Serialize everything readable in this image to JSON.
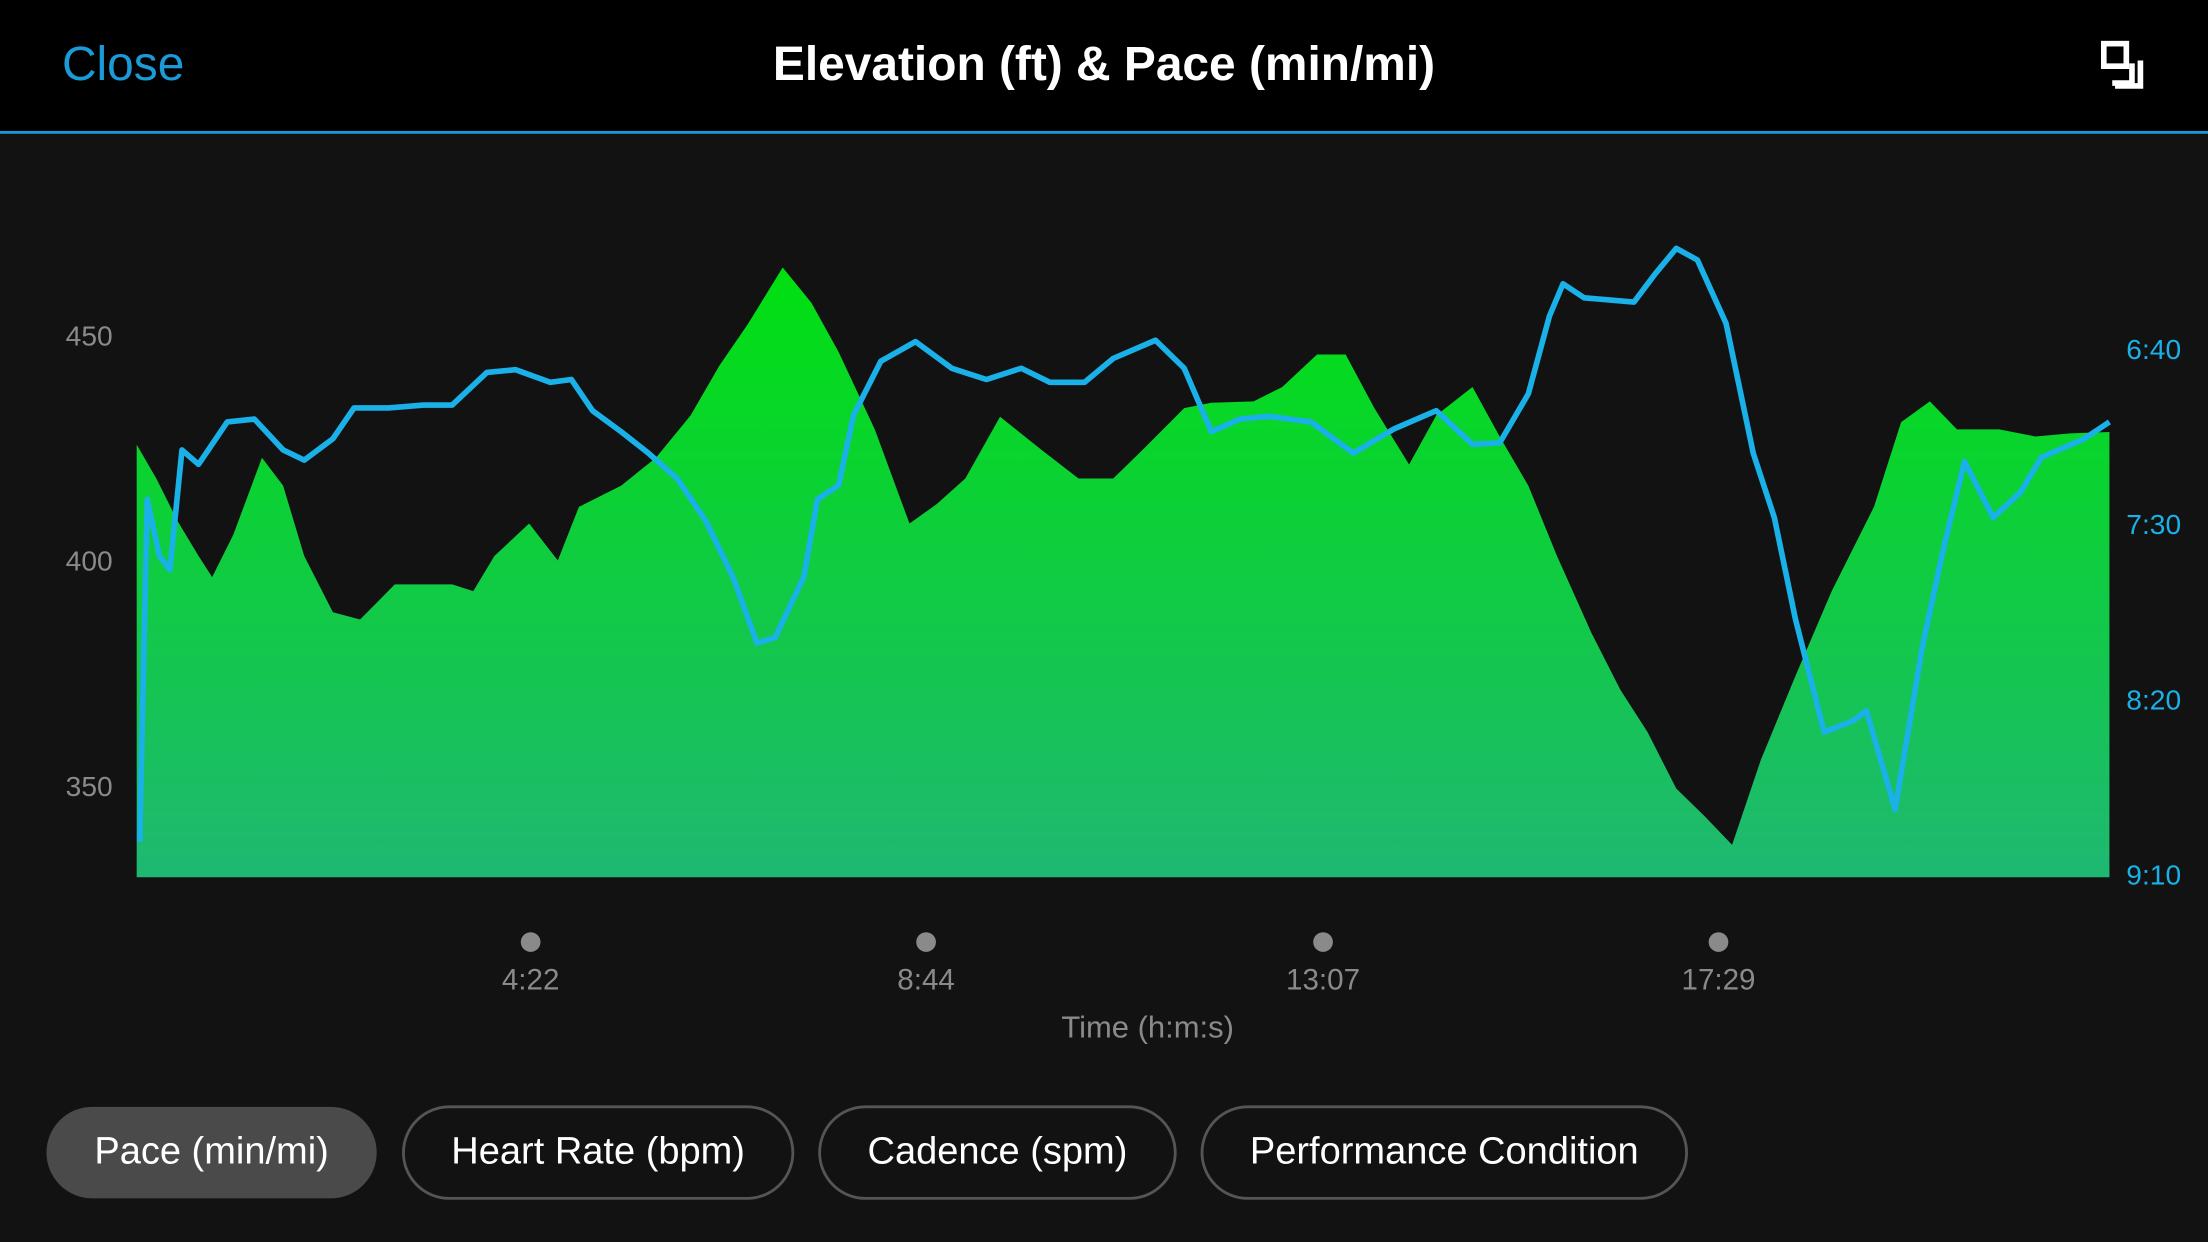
{
  "header": {
    "close": "Close"
  },
  "chart_data": {
    "type": "area_line",
    "title": "Elevation (ft) & Pace (min/mi)",
    "xlabel": "Time (h:m:s)",
    "xlim": [
      0,
      1308
    ],
    "xticks": [
      {
        "value": 262,
        "label": "4:22"
      },
      {
        "value": 524,
        "label": "8:44"
      },
      {
        "value": 787,
        "label": "13:07"
      },
      {
        "value": 1049,
        "label": "17:29"
      }
    ],
    "ylim": [
      330.3,
      478.1
    ],
    "yticks": [
      350,
      400,
      450
    ],
    "y2lim": [
      550,
      360
    ],
    "y2ticks": [
      {
        "value": 400,
        "label": "6:40"
      },
      {
        "value": 450,
        "label": "7:30"
      },
      {
        "value": 500,
        "label": "8:20"
      },
      {
        "value": 550,
        "label": "9:10"
      }
    ],
    "series": [
      {
        "kind": "area",
        "color": "#00e010",
        "color2": "#1fb872",
        "x": [
          1,
          14,
          28,
          42,
          51,
          65,
          84,
          98,
          112,
          131,
          149,
          172,
          191,
          210,
          224,
          238,
          261,
          280,
          294,
          322,
          345,
          368,
          387,
          406,
          429,
          448,
          466,
          490,
          513,
          531,
          550,
          573,
          601,
          625,
          648,
          667,
          695,
          713,
          741,
          760,
          783,
          802,
          821,
          844,
          862,
          886,
          904,
          923,
          942,
          965,
          984,
          1002,
          1021,
          1040,
          1058,
          1077,
          1100,
          1124,
          1152,
          1170,
          1189,
          1207,
          1235,
          1259,
          1282,
          1308
        ],
        "values": [
          426.3,
          418.8,
          409.4,
          401.6,
          396.9,
          406.3,
          423.4,
          417.2,
          401.6,
          389.1,
          387.5,
          395.3,
          395.3,
          395.3,
          393.8,
          401.6,
          408.8,
          400.6,
          412.5,
          417.2,
          423.4,
          432.8,
          443.8,
          453.1,
          465.6,
          457.8,
          446.9,
          429.7,
          408.8,
          413.1,
          418.8,
          432.5,
          425,
          418.8,
          418.8,
          425,
          434.4,
          435.6,
          435.9,
          439.1,
          446.3,
          446.3,
          434.4,
          421.9,
          432.8,
          439.1,
          428.1,
          417.2,
          401.6,
          384.4,
          371.9,
          362.5,
          350,
          343.8,
          337.5,
          356.3,
          375,
          393.8,
          412.5,
          431.3,
          435.9,
          429.7,
          429.7,
          428.1,
          428.8,
          429.1
        ]
      },
      {
        "kind": "line",
        "axis": "y2",
        "color": "#1ab0e8",
        "x": [
          3,
          8,
          16,
          23,
          31,
          42,
          61,
          79,
          98,
          112,
          131,
          145,
          168,
          191,
          210,
          233,
          252,
          275,
          289,
          303,
          322,
          340,
          359,
          378,
          396,
          412,
          424,
          443,
          452,
          466,
          476,
          494,
          517,
          541,
          564,
          587,
          606,
          629,
          648,
          676,
          695,
          713,
          732,
          751,
          779,
          807,
          834,
          862,
          886,
          904,
          923,
          937,
          946,
          960,
          993,
          1007,
          1021,
          1035,
          1054,
          1072,
          1086,
          1100,
          1119,
          1138,
          1147,
          1166,
          1184,
          1198,
          1212,
          1231,
          1249,
          1263,
          1291,
          1308
        ],
        "values": [
          539.9,
          442.2,
          458.3,
          462.3,
          428.1,
          432.2,
          420.1,
          419.3,
          428.1,
          431,
          424.9,
          416.1,
          416.1,
          415.3,
          415.3,
          406,
          405.2,
          408.8,
          408,
          416.9,
          422.9,
          429,
          436.2,
          448.3,
          464.3,
          483.2,
          481.6,
          464.3,
          442.2,
          438.2,
          418.1,
          402.8,
          397.2,
          404.8,
          408,
          404.8,
          408.8,
          408.8,
          402,
          396.8,
          404.8,
          422.9,
          419.3,
          418.5,
          420.1,
          429,
          422.1,
          416.9,
          426.5,
          426.1,
          412.1,
          389.9,
          380.7,
          384.7,
          385.9,
          377.9,
          370.6,
          373.9,
          392,
          429,
          447.4,
          476.4,
          508.6,
          505.4,
          502.5,
          530.7,
          484.4,
          456.3,
          431.4,
          447.4,
          440.2,
          430.2,
          425,
          420.1
        ]
      }
    ]
  },
  "tabs": {
    "selected": 0,
    "items": [
      "Pace (min/mi)",
      "Heart Rate (bpm)",
      "Cadence (spm)",
      "Performance Condition"
    ]
  }
}
